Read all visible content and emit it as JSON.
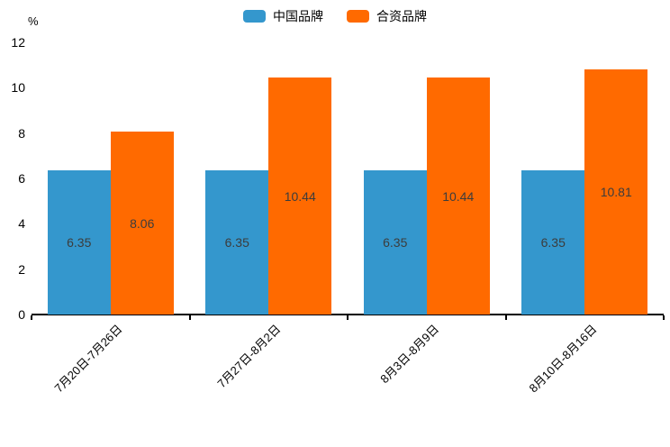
{
  "chart_data": {
    "type": "bar",
    "title": "",
    "unit_label": "%",
    "categories": [
      "7月20日-7月26日",
      "7月27日-8月2日",
      "8月3日-8月9日",
      "8月10日-8月16日"
    ],
    "series": [
      {
        "name": "中国品牌",
        "color": "#3497CD",
        "values": [
          6.35,
          6.35,
          6.35,
          6.35
        ]
      },
      {
        "name": "合资品牌",
        "color": "#FF6A00",
        "values": [
          8.06,
          10.44,
          10.44,
          10.81
        ]
      }
    ],
    "xlabel": "",
    "ylabel": "%",
    "ylim": [
      0,
      12
    ],
    "y_ticks": [
      0,
      2,
      4,
      6,
      8,
      10,
      12
    ],
    "grid": false,
    "legend_position": "top-center",
    "value_labels": true,
    "x_label_rotation_deg": 45
  }
}
